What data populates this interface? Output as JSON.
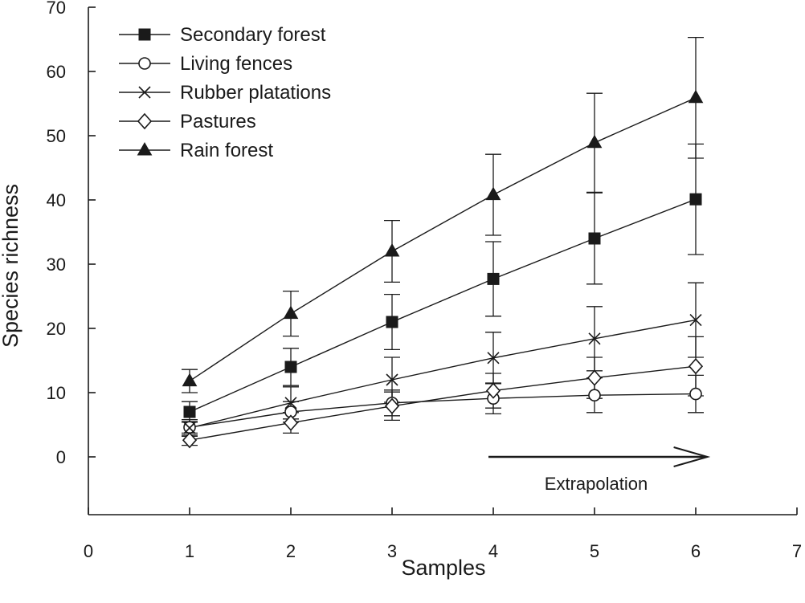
{
  "chart_data": {
    "type": "line",
    "title": "",
    "xlabel": "Samples",
    "ylabel": "Species richness",
    "xlim": [
      0,
      7
    ],
    "ylim": [
      -9,
      70
    ],
    "xticks": [
      0,
      1,
      2,
      3,
      4,
      5,
      6,
      7
    ],
    "yticks": [
      0,
      10,
      20,
      30,
      40,
      50,
      60,
      70
    ],
    "grid": false,
    "legend_position": "top-left",
    "x": [
      1,
      2,
      3,
      4,
      5,
      6
    ],
    "series": [
      {
        "name": "Secondary forest",
        "marker": "square-filled",
        "values": [
          7.0,
          14.0,
          21.0,
          27.7,
          34.0,
          40.1
        ],
        "error": [
          1.6,
          2.9,
          4.3,
          5.8,
          7.1,
          8.6
        ]
      },
      {
        "name": "Living fences",
        "marker": "circle-open",
        "values": [
          4.6,
          7.0,
          8.4,
          9.1,
          9.6,
          9.8
        ],
        "error": [
          0.9,
          1.6,
          2.0,
          2.4,
          2.7,
          2.9
        ]
      },
      {
        "name": "Rubber platations",
        "marker": "x",
        "values": [
          4.5,
          8.4,
          12.0,
          15.4,
          18.4,
          21.3
        ],
        "error": [
          1.3,
          2.5,
          3.5,
          4.0,
          5.0,
          5.8
        ]
      },
      {
        "name": "Pastures",
        "marker": "diamond-open",
        "values": [
          2.6,
          5.3,
          7.9,
          10.3,
          12.3,
          14.1
        ],
        "error": [
          0.8,
          1.6,
          2.2,
          2.7,
          3.2,
          4.6
        ]
      },
      {
        "name": "Rain forest",
        "marker": "triangle-filled",
        "values": [
          11.8,
          22.3,
          32.0,
          40.8,
          48.9,
          55.9
        ],
        "error": [
          1.8,
          3.5,
          4.8,
          6.3,
          7.7,
          9.4
        ]
      }
    ],
    "annotation": {
      "text": "Extrapolation",
      "arrow_from_x": 4.0,
      "arrow_to_x": 6.1,
      "arrow_y": 0
    }
  }
}
